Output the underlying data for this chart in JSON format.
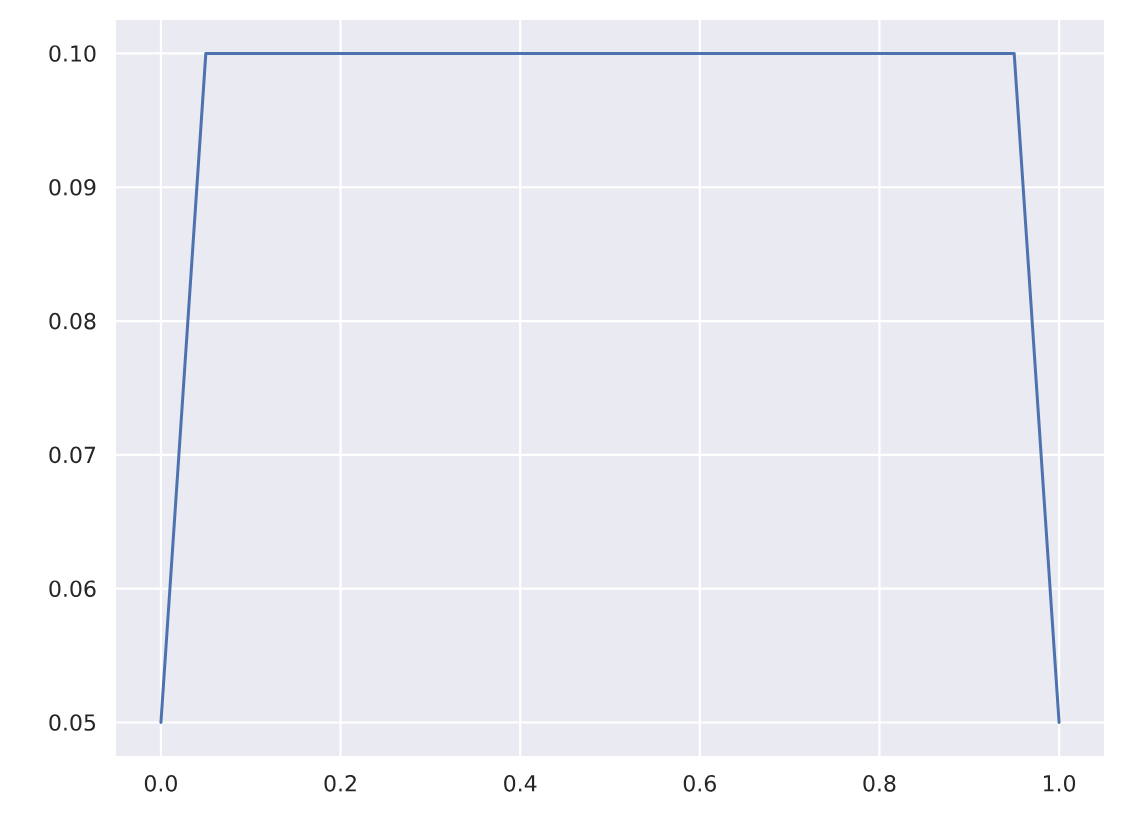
{
  "chart_data": {
    "type": "line",
    "x": [
      0,
      0.05,
      0.95,
      1.0
    ],
    "series": [
      {
        "color": "#4c72b0",
        "values": [
          0.05,
          0.1,
          0.1,
          0.05
        ]
      }
    ],
    "xlim": [
      -0.05,
      1.05
    ],
    "ylim": [
      0.0475,
      0.1025
    ],
    "xticks": [
      {
        "value": 0,
        "label": "0.0"
      },
      {
        "value": 0.2,
        "label": "0.2"
      },
      {
        "value": 0.4,
        "label": "0.4"
      },
      {
        "value": 0.6,
        "label": "0.6"
      },
      {
        "value": 0.8,
        "label": "0.8"
      },
      {
        "value": 1.0,
        "label": "1.0"
      }
    ],
    "yticks": [
      {
        "value": 0.05,
        "label": "0.05"
      },
      {
        "value": 0.06,
        "label": "0.06"
      },
      {
        "value": 0.07,
        "label": "0.07"
      },
      {
        "value": 0.08,
        "label": "0.08"
      },
      {
        "value": 0.09,
        "label": "0.09"
      },
      {
        "value": 0.1,
        "label": "0.10"
      }
    ],
    "grid": true,
    "line_style": "solid"
  }
}
